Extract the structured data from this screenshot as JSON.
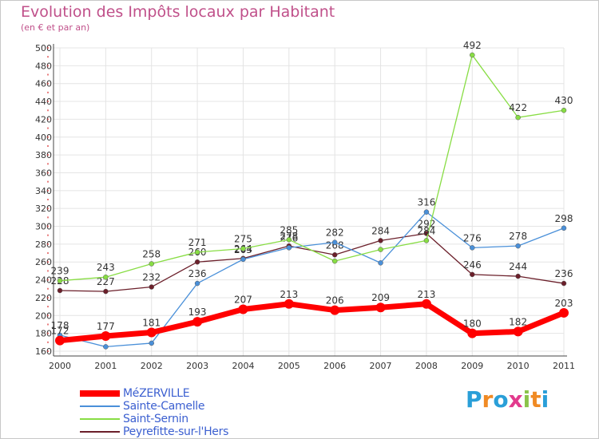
{
  "title": "Evolution des Impôts locaux par Habitant",
  "subtitle": "(en € et par an)",
  "logo_text": "Proxiti",
  "chart_data": {
    "type": "line",
    "title": "Evolution des Impôts locaux par Habitant",
    "subtitle": "(en € et par an)",
    "xlabel": "",
    "ylabel": "",
    "ylim": [
      160,
      500
    ],
    "ytick_step": 20,
    "grid": true,
    "legend_position": "bottom-left",
    "categories": [
      "2000",
      "2001",
      "2002",
      "2003",
      "2004",
      "2005",
      "2006",
      "2007",
      "2008",
      "2009",
      "2010",
      "2011"
    ],
    "series": [
      {
        "name": "MéZERVILLE",
        "color": "#ff0000",
        "values": [
          172,
          177,
          181,
          193,
          207,
          213,
          206,
          209,
          213,
          180,
          182,
          203
        ],
        "labels": [
          "172",
          "177",
          "181",
          "193",
          "207",
          "213",
          "206",
          "209",
          "213",
          "180",
          "182",
          "203"
        ]
      },
      {
        "name": "Sainte-Camelle",
        "color": "#4a90d9",
        "values": [
          178,
          165,
          169,
          236,
          263,
          276,
          282,
          259,
          316,
          276,
          278,
          298
        ],
        "labels": [
          "178",
          "",
          "",
          "236",
          "263",
          "276",
          "282",
          "",
          "316",
          "276",
          "278",
          "298"
        ]
      },
      {
        "name": "Saint-Sernin",
        "color": "#88dd44",
        "values": [
          239,
          243,
          258,
          271,
          275,
          285,
          261,
          274,
          284,
          492,
          422,
          430
        ],
        "labels": [
          "239",
          "243",
          "258",
          "271",
          "275",
          "285",
          "",
          "",
          "284",
          "492",
          "422",
          "430"
        ]
      },
      {
        "name": "Peyrefitte-sur-l'Hers",
        "color": "#6b1f2a",
        "values": [
          228,
          227,
          232,
          260,
          264,
          278,
          268,
          284,
          292,
          246,
          244,
          236
        ],
        "labels": [
          "228",
          "227",
          "232",
          "260",
          "264",
          "278",
          "268",
          "284",
          "292",
          "246",
          "244",
          "236"
        ]
      }
    ]
  }
}
